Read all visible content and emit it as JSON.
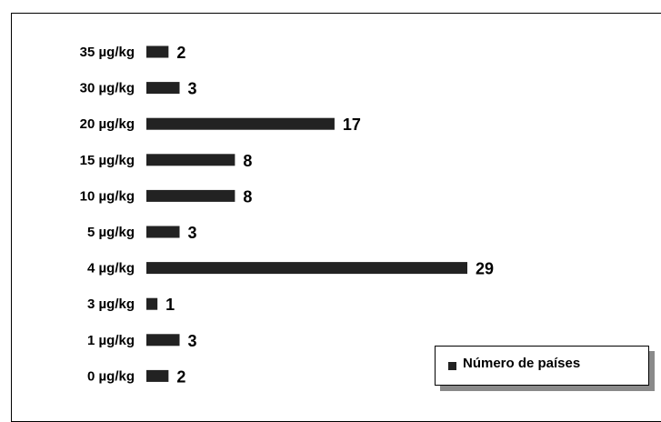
{
  "chart_data": {
    "type": "bar",
    "orientation": "horizontal",
    "categories": [
      "35 µg/kg",
      "30 µg/kg",
      "20 µg/kg",
      "15 µg/kg",
      "10 µg/kg",
      "5 µg/kg",
      "4 µg/kg",
      "3 µg/kg",
      "1 µg/kg",
      "0 µg/kg"
    ],
    "series": [
      {
        "name": "Número de países",
        "values": [
          2,
          3,
          17,
          8,
          8,
          3,
          29,
          1,
          3,
          2
        ]
      }
    ],
    "data_labels": [
      "2",
      "3",
      "17",
      "8",
      "8",
      "3",
      "29",
      "1",
      "3",
      "2"
    ],
    "legend": {
      "label": "Número de países",
      "placement": "bottom-right"
    },
    "bar_color": "#222222",
    "title": "",
    "xlabel": "",
    "ylabel": "",
    "xlim": [
      0,
      29
    ],
    "grid": false
  }
}
